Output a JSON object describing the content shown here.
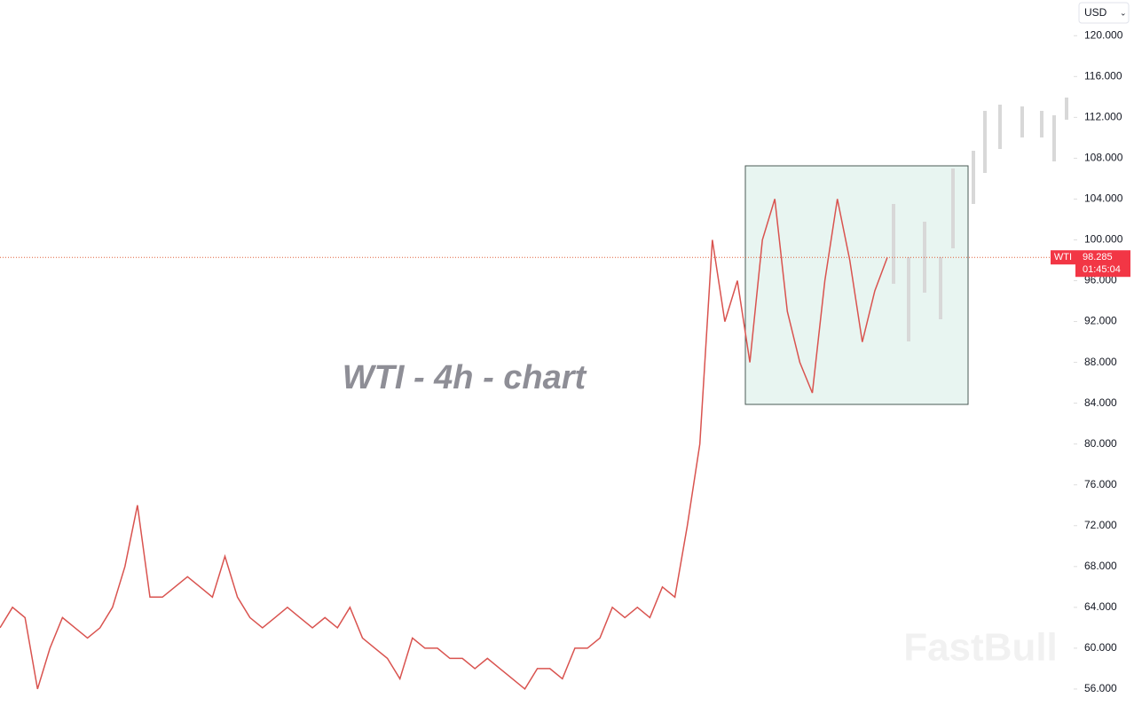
{
  "chart_data": {
    "type": "line",
    "title": "WTI - 4h - chart",
    "watermark": "FastBull",
    "currency": "USD",
    "symbol": "WTI",
    "last_price": 98.285,
    "last_price_label": "98.285",
    "countdown": "01:45:04",
    "color": "#d9534f",
    "price_line_color": "#e0603a",
    "categories": [
      null,
      null,
      null,
      null,
      null,
      null,
      null,
      null,
      null,
      null,
      null,
      null,
      null,
      null,
      null,
      null,
      null,
      null,
      null,
      null,
      null,
      null,
      null,
      null,
      null,
      null,
      null,
      null,
      null,
      null,
      null,
      null,
      null,
      null,
      null,
      null,
      null,
      null,
      null,
      null,
      null,
      null,
      null,
      null,
      null,
      null,
      null,
      null,
      null,
      null,
      null,
      null,
      null,
      null,
      null,
      null,
      null,
      null,
      null,
      null,
      null,
      null,
      null,
      null,
      null,
      null,
      null,
      null,
      null,
      null,
      null,
      null
    ],
    "values": [
      62,
      64,
      63,
      56,
      60,
      63,
      62,
      61,
      62,
      64,
      68,
      74,
      65,
      65,
      66,
      67,
      66,
      65,
      69,
      65,
      63,
      62,
      63,
      64,
      63,
      62,
      63,
      62,
      64,
      61,
      60,
      59,
      57,
      61,
      60,
      60,
      59,
      59,
      58,
      59,
      58,
      57,
      56,
      58,
      58,
      57,
      60,
      60,
      61,
      64,
      63,
      64,
      63,
      66,
      65,
      72,
      80,
      100,
      92,
      96,
      88,
      100,
      104,
      93,
      88,
      85,
      96,
      104,
      98,
      90,
      95,
      98.285
    ],
    "ylim": [
      53.3,
      123.5
    ],
    "yticks": [
      {
        "value": 56,
        "label": "56.000"
      },
      {
        "value": 60,
        "label": "60.000"
      },
      {
        "value": 64,
        "label": "64.000"
      },
      {
        "value": 68,
        "label": "68.000"
      },
      {
        "value": 72,
        "label": "72.000"
      },
      {
        "value": 76,
        "label": "76.000"
      },
      {
        "value": 80,
        "label": "80.000"
      },
      {
        "value": 84,
        "label": "84.000"
      },
      {
        "value": 88,
        "label": "88.000"
      },
      {
        "value": 92,
        "label": "92.000"
      },
      {
        "value": 96,
        "label": "96.000"
      },
      {
        "value": 100,
        "label": "100.000"
      },
      {
        "value": 104,
        "label": "104.000"
      },
      {
        "value": 108,
        "label": "108.000"
      },
      {
        "value": 112,
        "label": "112.000"
      },
      {
        "value": 116,
        "label": "116.000"
      },
      {
        "value": 120,
        "label": "120.000"
      }
    ]
  }
}
